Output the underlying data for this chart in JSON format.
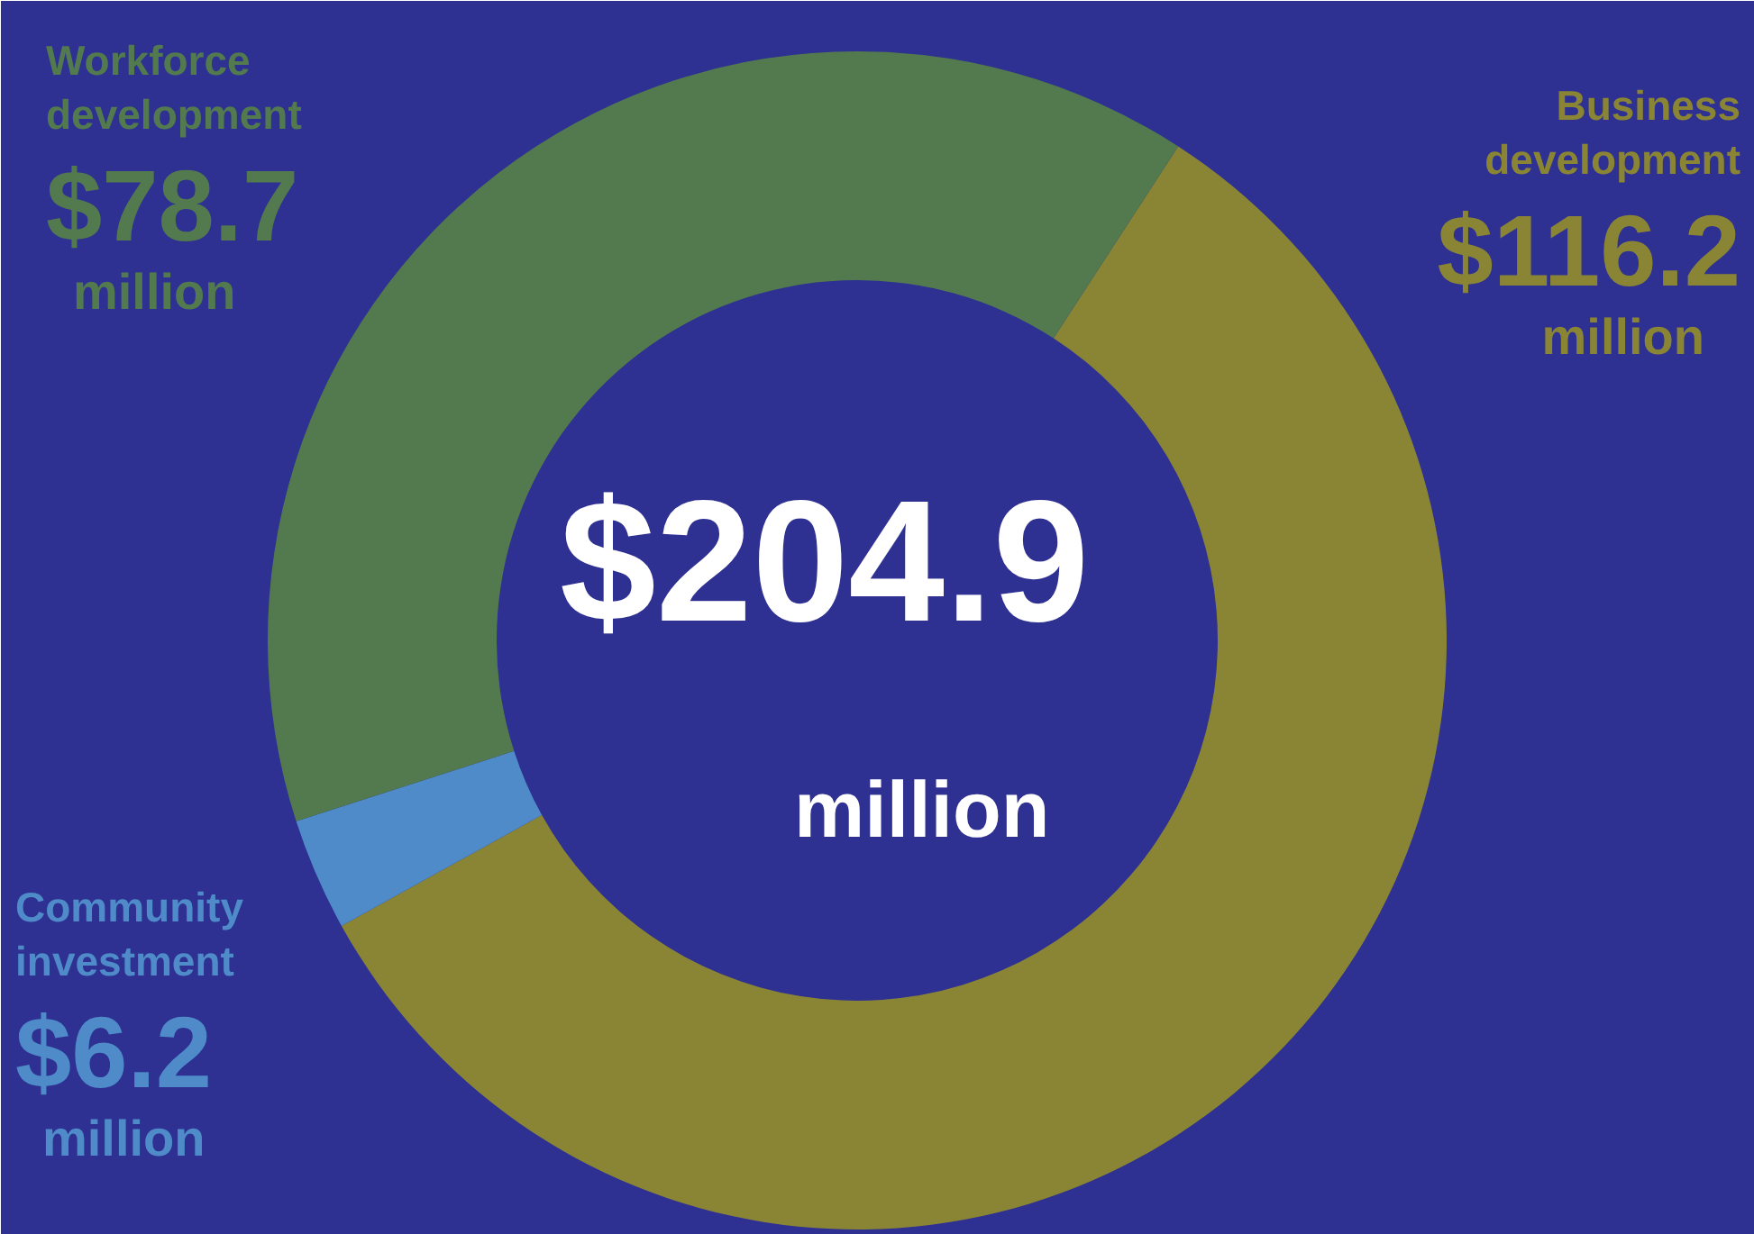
{
  "chart_data": {
    "type": "donut",
    "categories": [
      "Business development",
      "Community investment",
      "Workforce development"
    ],
    "values": [
      116.2,
      6.2,
      78.7
    ],
    "colors": [
      "#8a8535",
      "#4f8bc9",
      "#527a4e"
    ],
    "value_labels": [
      "$116.2 million",
      "$6.2 million",
      "$78.7 million"
    ],
    "annotations": [
      "$204.9 million"
    ]
  }
}
